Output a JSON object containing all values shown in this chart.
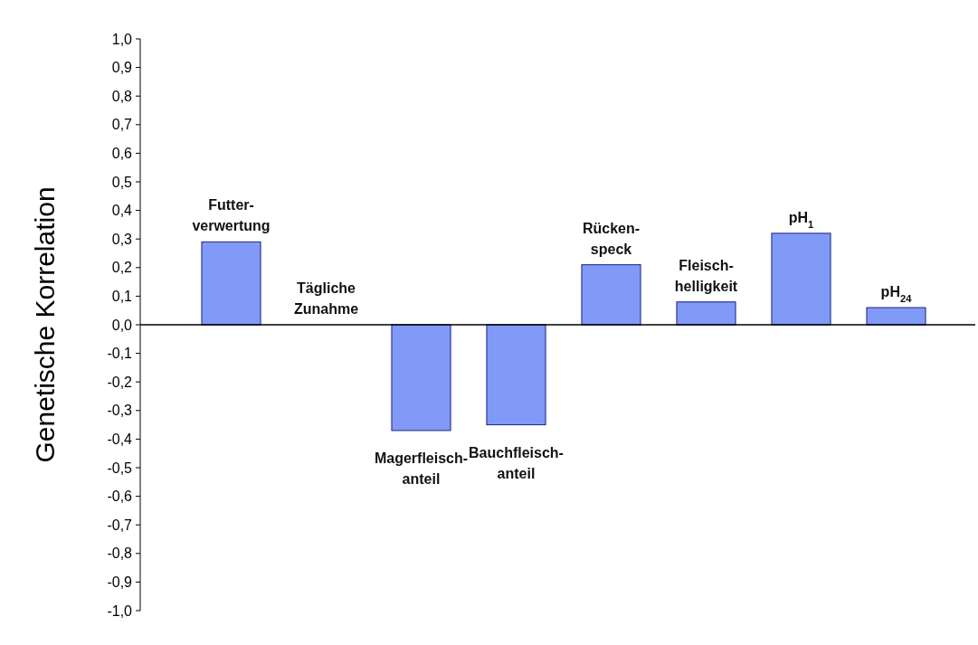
{
  "chart_data": {
    "type": "bar",
    "ylabel": "Genetische Korrelation",
    "categories": [
      "Futter-\nverwertung",
      "Tägliche\nZunahme",
      "Magerfleisch-\nanteil",
      "Bauchfleisch-\nanteil",
      "Rücken-\nspeck",
      "Fleisch-\nhelligkeit",
      "pH$_{1}$",
      "pH$_{24}$"
    ],
    "values": [
      0.29,
      0,
      -0.37,
      -0.35,
      0.21,
      0.08,
      0.32,
      0.06
    ],
    "color": "#8199f7",
    "ylim": [
      -1,
      1
    ],
    "yticks": [
      {
        "value": 1,
        "label": "1,0"
      },
      {
        "value": 0.9,
        "label": "0,9"
      },
      {
        "value": 0.8,
        "label": "0,8"
      },
      {
        "value": 0.7,
        "label": "0,7"
      },
      {
        "value": 0.6,
        "label": "0,6"
      },
      {
        "value": 0.5,
        "label": "0,5"
      },
      {
        "value": 0.4,
        "label": "0,4"
      },
      {
        "value": 0.3,
        "label": "0,3"
      },
      {
        "value": 0.2,
        "label": "0,2"
      },
      {
        "value": 0.1,
        "label": "0,1"
      },
      {
        "value": 0,
        "label": "0,0"
      },
      {
        "value": -0.1,
        "label": "-0,1"
      },
      {
        "value": -0.2,
        "label": "-0,2"
      },
      {
        "value": -0.3,
        "label": "-0,3"
      },
      {
        "value": -0.4,
        "label": "-0,4"
      },
      {
        "value": -0.5,
        "label": "-0,5"
      },
      {
        "value": -0.6,
        "label": "-0,6"
      },
      {
        "value": -0.7,
        "label": "-0,7"
      },
      {
        "value": -0.8,
        "label": "-0,8"
      },
      {
        "value": -0.9,
        "label": "-0,9"
      },
      {
        "value": -1,
        "label": "-1,0"
      }
    ],
    "grid": false
  }
}
